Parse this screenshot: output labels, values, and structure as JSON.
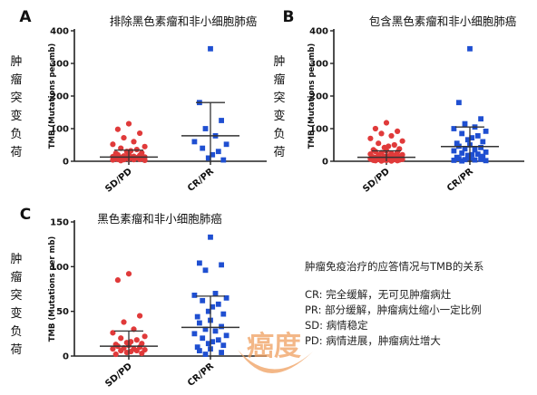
{
  "chart_data": [
    {
      "type": "scatter",
      "panel_letter": "A",
      "title": "排除黑色素瘤和非小细胞肺癌",
      "ylabel_cn": "肿瘤突变负荷",
      "ylabel_en": "TMB (Mutations per mb)",
      "ylim": [
        0,
        400
      ],
      "yticks": [
        0,
        100,
        200,
        300,
        400
      ],
      "categories": [
        "SD/PD",
        "CR/PR"
      ],
      "series": [
        {
          "name": "SD/PD",
          "values": [
            115,
            98,
            86,
            72,
            60,
            52,
            45,
            40,
            36,
            32,
            30,
            26,
            24,
            22,
            20,
            18,
            16,
            15,
            14,
            13,
            12,
            11,
            10,
            9,
            8,
            8,
            7,
            6,
            6,
            5,
            5,
            4,
            3,
            2
          ],
          "mean": 13,
          "error_high": 34,
          "error_low": 0
        },
        {
          "name": "CR/PR",
          "values": [
            345,
            180,
            125,
            100,
            78,
            60,
            52,
            40,
            30,
            20,
            10,
            4
          ],
          "mean": 78,
          "error_high": 180,
          "error_low": 0
        }
      ]
    },
    {
      "type": "scatter",
      "panel_letter": "B",
      "title": "包含黑色素瘤和非小细胞肺癌",
      "ylabel_cn": "肿瘤突变负荷",
      "ylabel_en": "TMB (Mutations per mb)",
      "ylim": [
        0,
        400
      ],
      "yticks": [
        0,
        100,
        200,
        300,
        400
      ],
      "categories": [
        "SD/PD",
        "CR/PR"
      ],
      "series": [
        {
          "name": "SD/PD",
          "values": [
            118,
            100,
            92,
            85,
            78,
            70,
            62,
            55,
            50,
            46,
            42,
            38,
            35,
            32,
            30,
            28,
            26,
            24,
            22,
            20,
            19,
            18,
            16,
            15,
            14,
            13,
            12,
            11,
            10,
            9,
            8,
            7,
            6,
            6,
            5,
            5,
            4,
            4,
            3,
            3,
            2,
            2,
            1,
            1
          ],
          "mean": 12,
          "error_high": 32,
          "error_low": 0
        },
        {
          "name": "CR/PR",
          "values": [
            345,
            180,
            130,
            115,
            105,
            100,
            92,
            85,
            78,
            72,
            66,
            60,
            55,
            50,
            46,
            42,
            38,
            35,
            32,
            28,
            25,
            22,
            20,
            18,
            15,
            12,
            10,
            8,
            6,
            5,
            4,
            3,
            2,
            1
          ],
          "mean": 45,
          "error_high": 105,
          "error_low": 0
        }
      ]
    },
    {
      "type": "scatter",
      "panel_letter": "C",
      "title": "黑色素瘤和非小细胞肺癌",
      "ylabel_cn": "肿瘤突变负荷",
      "ylabel_en": "TMB (Mutations per mb)",
      "ylim": [
        0,
        150
      ],
      "yticks": [
        0,
        50,
        100,
        150
      ],
      "categories": [
        "SD/PD",
        "CR/PR"
      ],
      "series": [
        {
          "name": "SD/PD",
          "values": [
            92,
            85,
            45,
            38,
            30,
            26,
            22,
            20,
            18,
            16,
            15,
            14,
            13,
            12,
            11,
            10,
            9,
            8,
            8,
            7,
            6,
            6,
            5,
            4,
            3,
            2
          ],
          "mean": 11,
          "error_high": 28,
          "error_low": 0
        },
        {
          "name": "CR/PR",
          "values": [
            133,
            104,
            102,
            96,
            70,
            68,
            65,
            62,
            58,
            55,
            50,
            47,
            44,
            40,
            37,
            33,
            30,
            28,
            25,
            23,
            20,
            18,
            16,
            14,
            12,
            10,
            8,
            6,
            4,
            2
          ],
          "mean": 32,
          "error_high": 67,
          "error_low": 0
        }
      ]
    }
  ],
  "colors": {
    "sdpd": "#e03a3a",
    "crpr": "#1f4fd1",
    "axis": "#222222",
    "watermark": "#f0a060"
  },
  "legend": {
    "title": "肿瘤免疫治疗的应答情况与TMB的关系",
    "items": [
      {
        "key": "CR:",
        "text": "完全缓解，无可见肿瘤病灶"
      },
      {
        "key": "PR:",
        "text": "部分缓解，肿瘤病灶缩小一定比例"
      },
      {
        "key": "SD:",
        "text": "病情稳定"
      },
      {
        "key": "PD:",
        "text": "病情进展，肿瘤病灶增大"
      }
    ]
  },
  "watermark_text": "癌度"
}
